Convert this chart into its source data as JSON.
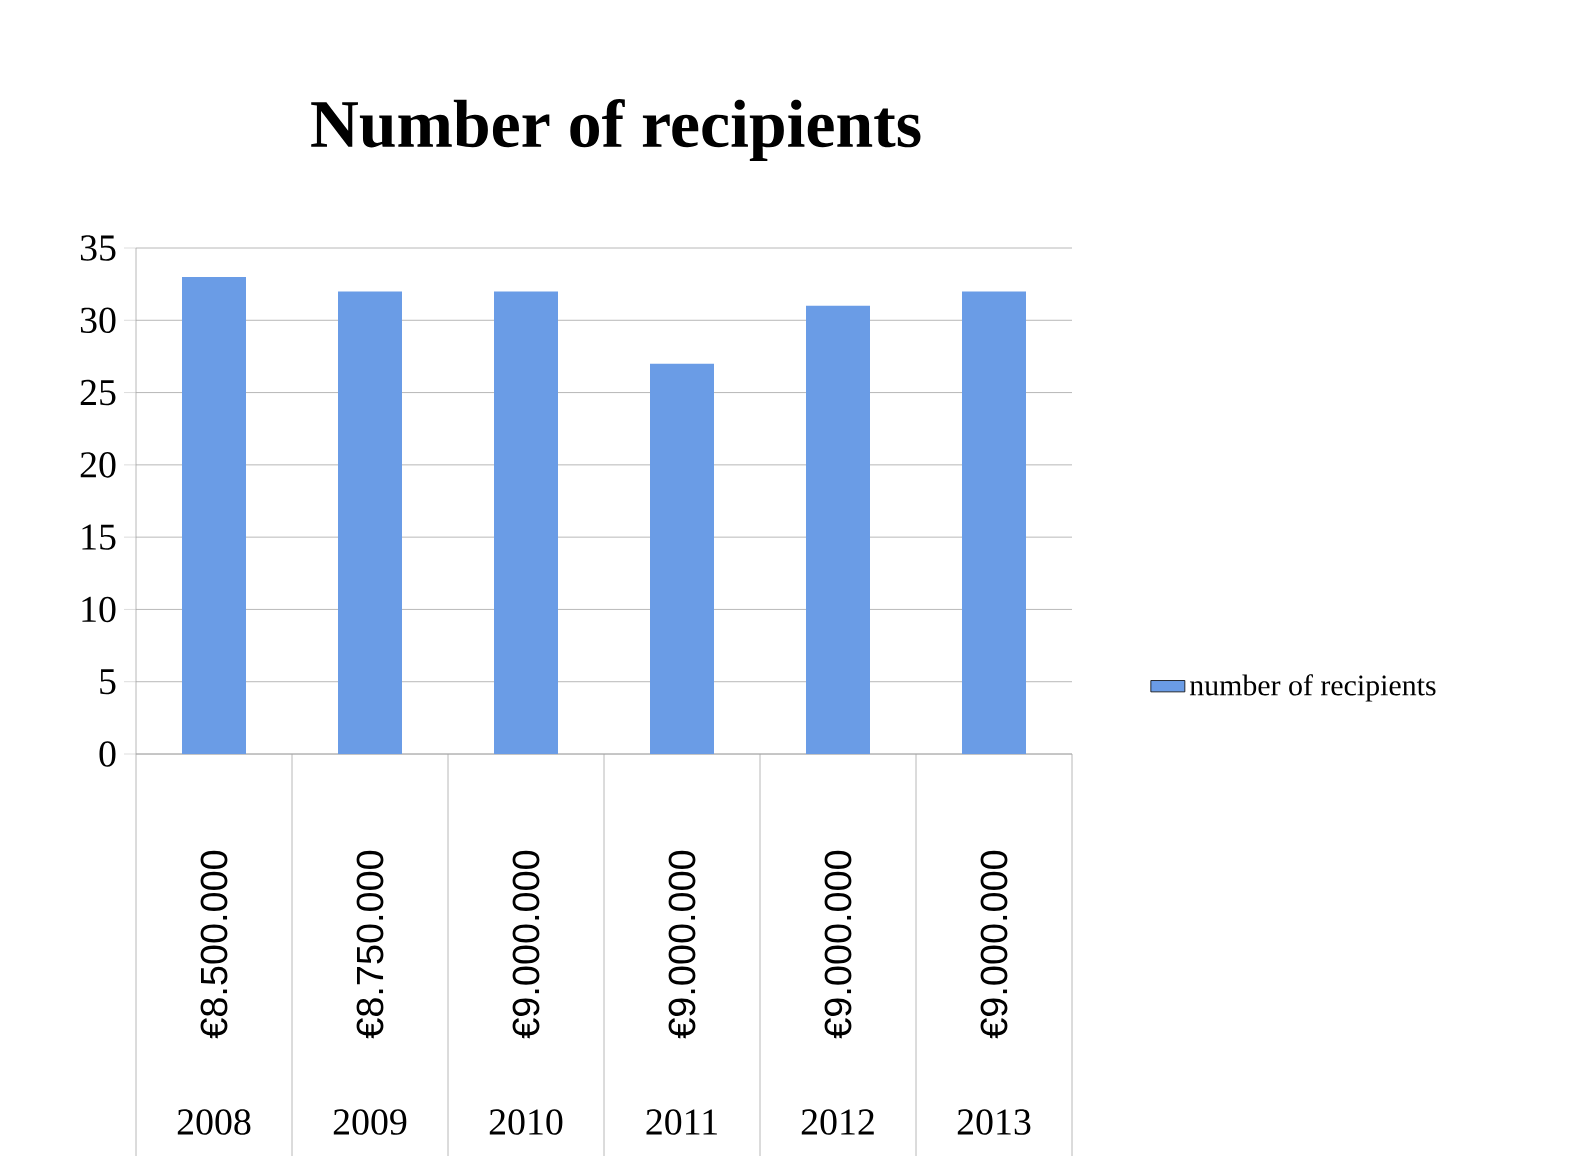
{
  "chart_data": {
    "type": "bar",
    "title": "Number of recipients",
    "categories": [
      "€8.500.000",
      "€8.750.000",
      "€9.000.000",
      "€9.000.000",
      "€9.000.000",
      "€9.000.000"
    ],
    "series": [
      {
        "name": "number of recipients",
        "color": "#6a9ce6",
        "values": [
          33,
          32,
          32,
          27,
          31,
          32
        ]
      }
    ],
    "annotations": [
      "2008",
      "2009",
      "2010",
      "2011",
      "2012",
      "2013"
    ],
    "ylim": [
      0,
      35
    ],
    "yticks": [
      0,
      5,
      10,
      15,
      20,
      25,
      30,
      35
    ],
    "grid": "y",
    "legend": "right"
  }
}
